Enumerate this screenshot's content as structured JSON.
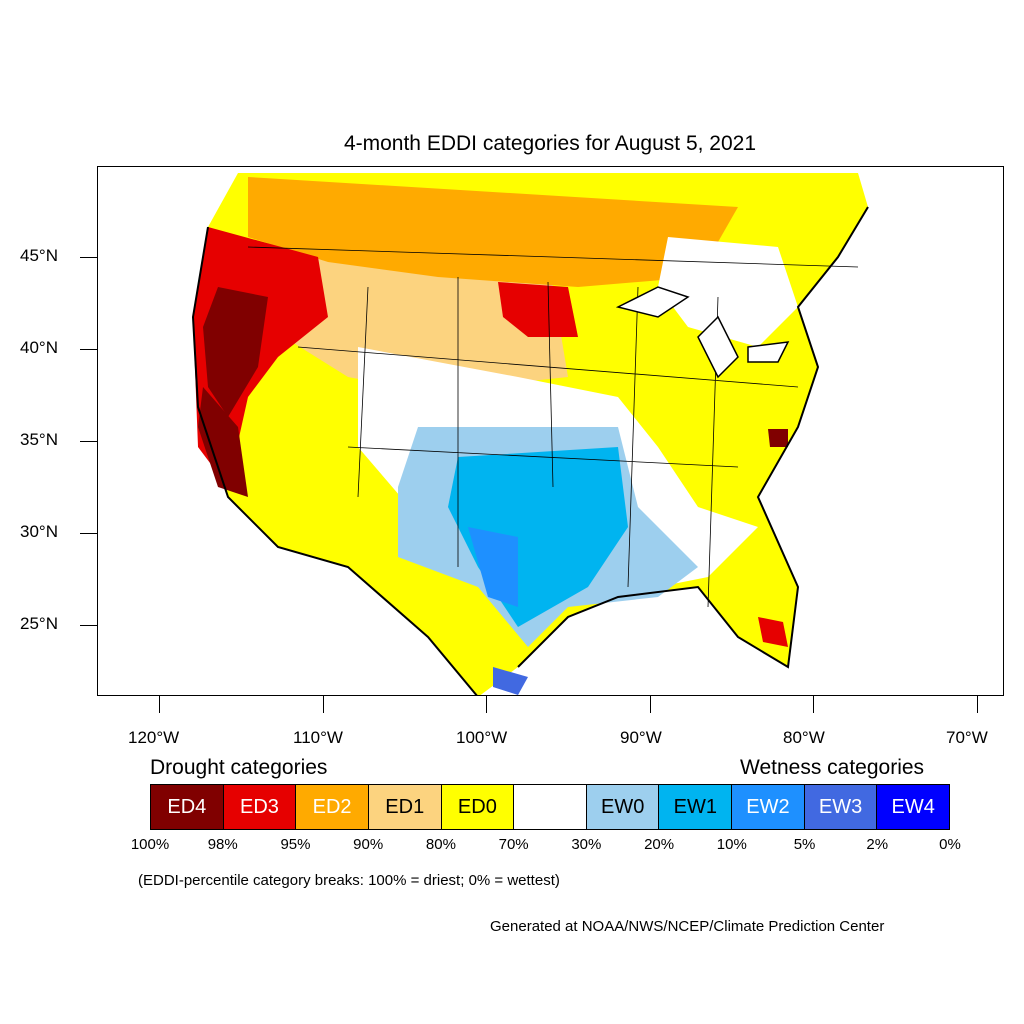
{
  "title": "4-month EDDI categories for August 5, 2021",
  "latitude_labels": [
    "45°N",
    "40°N",
    "35°N",
    "30°N",
    "25°N"
  ],
  "longitude_labels": [
    "120°W",
    "110°W",
    "100°W",
    "90°W",
    "80°W",
    "70°W"
  ],
  "legend": {
    "drought_heading": "Drought categories",
    "wetness_heading": "Wetness categories",
    "categories": [
      {
        "label": "ED4",
        "color": "#800000",
        "text_color": "#ffffff"
      },
      {
        "label": "ED3",
        "color": "#e60000",
        "text_color": "#ffffff"
      },
      {
        "label": "ED2",
        "color": "#ffaa00",
        "text_color": "#ffffff"
      },
      {
        "label": "ED1",
        "color": "#fcd37f",
        "text_color": "#000000"
      },
      {
        "label": "ED0",
        "color": "#ffff00",
        "text_color": "#000000"
      },
      {
        "label": "",
        "color": "#ffffff",
        "text_color": "#000000"
      },
      {
        "label": "EW0",
        "color": "#9dcfee",
        "text_color": "#000000"
      },
      {
        "label": "EW1",
        "color": "#00b4f0",
        "text_color": "#000000"
      },
      {
        "label": "EW2",
        "color": "#1e90ff",
        "text_color": "#ffffff"
      },
      {
        "label": "EW3",
        "color": "#4169e1",
        "text_color": "#ffffff"
      },
      {
        "label": "EW4",
        "color": "#0000ff",
        "text_color": "#ffffff"
      }
    ],
    "percentile_breaks": [
      "100%",
      "98%",
      "95%",
      "90%",
      "80%",
      "70%",
      "30%",
      "20%",
      "10%",
      "5%",
      "2%",
      "0%"
    ]
  },
  "note": "(EDDI-percentile category breaks: 100% = driest; 0% = wettest)",
  "credit": "Generated at NOAA/NWS/NCEP/Climate Prediction Center"
}
